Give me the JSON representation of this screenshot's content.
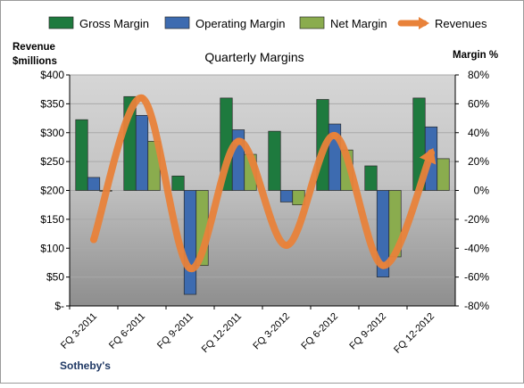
{
  "chart_data": {
    "type": "bar+line",
    "title": "Quarterly Margins",
    "y_left_label_lines": [
      "Revenue",
      "$millions"
    ],
    "y_right_label": "Margin %",
    "footer": "Sotheby's",
    "categories": [
      "FQ 3-2011",
      "FQ 6-2011",
      "FQ 9-2011",
      "FQ 12-2011",
      "FQ 3-2012",
      "FQ 6-2012",
      "FQ 9-2012",
      "FQ 12-2012"
    ],
    "left_axis": {
      "range": [
        0,
        400
      ],
      "ticks": [
        0,
        50,
        100,
        150,
        200,
        250,
        300,
        350,
        400
      ],
      "tick_labels": [
        "$-",
        "$50",
        "$100",
        "$150",
        "$200",
        "$250",
        "$300",
        "$350",
        "$400"
      ]
    },
    "right_axis": {
      "range": [
        -80,
        80
      ],
      "ticks": [
        -80,
        -60,
        -40,
        -20,
        0,
        20,
        40,
        60,
        80
      ],
      "tick_labels": [
        "-80%",
        "-60%",
        "-40%",
        "-20%",
        "0%",
        "20%",
        "40%",
        "60%",
        "80%"
      ]
    },
    "series": [
      {
        "name": "Gross Margin",
        "kind": "bar",
        "axis": "right",
        "color": "#1e7a3e",
        "values": [
          49,
          65,
          10,
          64,
          41,
          63,
          17,
          64
        ]
      },
      {
        "name": "Operating Margin",
        "kind": "bar",
        "axis": "right",
        "color": "#3d6bb0",
        "values": [
          9,
          52,
          -72,
          42,
          -8,
          46,
          -60,
          44
        ]
      },
      {
        "name": "Net Margin",
        "kind": "bar",
        "axis": "right",
        "color": "#8aac4e",
        "values": [
          0,
          34,
          -52,
          25,
          -10,
          28,
          -46,
          22
        ]
      },
      {
        "name": "Revenues",
        "kind": "line",
        "axis": "left",
        "color": "#e8823a",
        "values": [
          115,
          360,
          65,
          285,
          105,
          295,
          70,
          265
        ]
      }
    ],
    "legend_position": "top",
    "grid": true
  },
  "colors": {
    "plot_top": "#d4d4d4",
    "plot_bottom": "#8f8f8f",
    "footer_text": "#1f3864",
    "frame": "#9a9a9a"
  }
}
